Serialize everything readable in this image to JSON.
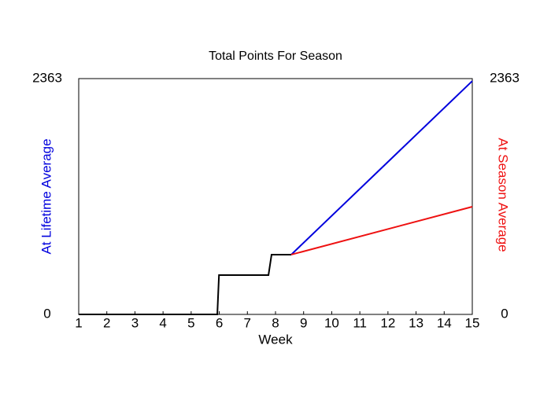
{
  "chart_data": {
    "type": "line",
    "title": "Total Points For Season",
    "xlabel": "Week",
    "xlim": [
      1,
      15
    ],
    "xticks": [
      1,
      2,
      3,
      4,
      5,
      6,
      7,
      8,
      9,
      10,
      11,
      12,
      13,
      14,
      15
    ],
    "ylim": [
      0,
      2363
    ],
    "yticks": [
      0,
      2363
    ],
    "y2lim": [
      0,
      2363
    ],
    "y2ticks": [
      0,
      2363
    ],
    "series": [
      {
        "color": "#000000",
        "x": [
          1,
          5.93,
          5.99,
          7.75,
          7.86,
          8.56
        ],
        "values": [
          0,
          0,
          394,
          394,
          599,
          599
        ]
      },
      {
        "name": "At Lifetime Average",
        "color": "#0000dd",
        "x": [
          8.56,
          15
        ],
        "values": [
          599,
          2339
        ]
      },
      {
        "name": "At Season Average",
        "color": "#ee1111",
        "axis": "y2",
        "x": [
          8.56,
          15
        ],
        "values": [
          599,
          1079
        ]
      }
    ]
  }
}
